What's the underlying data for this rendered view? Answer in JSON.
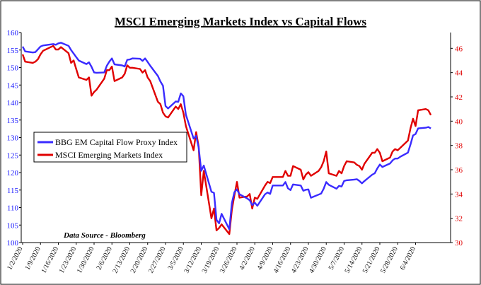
{
  "chart_data": {
    "type": "line",
    "title": "MSCI Emerging Markets Index vs Capital Flows",
    "annotation": "Data Source - Bloomberg",
    "legend_placement": "left-middle",
    "grid": false,
    "x_tick_labels": [
      "1/2/2020",
      "1/9/2020",
      "1/16/2020",
      "1/23/2020",
      "1/30/2020",
      "2/6/2020",
      "2/13/2020",
      "2/20/2020",
      "2/27/2020",
      "3/5/2020",
      "3/12/2020",
      "3/19/2020",
      "3/26/2020",
      "4/2/2020",
      "4/9/2020",
      "4/16/2020",
      "4/23/2020",
      "4/30/2020",
      "5/7/2020",
      "5/14/2020",
      "5/21/2020",
      "5/28/2020",
      "6/4/2020"
    ],
    "y_left": {
      "ticks": [
        100,
        105,
        110,
        115,
        120,
        125,
        130,
        135,
        140,
        145,
        150,
        155,
        160
      ],
      "range": [
        100,
        160
      ],
      "color": "#1a1aff"
    },
    "y_right": {
      "ticks": [
        30,
        32,
        34,
        36,
        38,
        40,
        42,
        44,
        46
      ],
      "range": [
        30,
        47.3
      ],
      "color": "#e00000"
    },
    "series": [
      {
        "name": "BBG EM Capital Flow Proxy Index",
        "axis": "left",
        "color": "#3a2bff",
        "values": [
          [
            "2020-01-02",
            156.0
          ],
          [
            "2020-01-03",
            154.6
          ],
          [
            "2020-01-06",
            154.3
          ],
          [
            "2020-01-07",
            154.4
          ],
          [
            "2020-01-08",
            155.2
          ],
          [
            "2020-01-09",
            156.0
          ],
          [
            "2020-01-10",
            156.3
          ],
          [
            "2020-01-13",
            156.6
          ],
          [
            "2020-01-14",
            156.7
          ],
          [
            "2020-01-15",
            156.5
          ],
          [
            "2020-01-16",
            156.9
          ],
          [
            "2020-01-17",
            157.1
          ],
          [
            "2020-01-20",
            156.2
          ],
          [
            "2020-01-21",
            155.0
          ],
          [
            "2020-01-22",
            154.0
          ],
          [
            "2020-01-23",
            153.0
          ],
          [
            "2020-01-24",
            152.0
          ],
          [
            "2020-01-27",
            151.0
          ],
          [
            "2020-01-28",
            151.5
          ],
          [
            "2020-01-29",
            150.2
          ],
          [
            "2020-01-30",
            148.6
          ],
          [
            "2020-01-31",
            148.5
          ],
          [
            "2020-02-03",
            148.6
          ],
          [
            "2020-02-04",
            150.5
          ],
          [
            "2020-02-05",
            151.7
          ],
          [
            "2020-02-06",
            152.6
          ],
          [
            "2020-02-07",
            150.9
          ],
          [
            "2020-02-10",
            150.6
          ],
          [
            "2020-02-11",
            150.3
          ],
          [
            "2020-02-12",
            152.2
          ],
          [
            "2020-02-13",
            152.3
          ],
          [
            "2020-02-14",
            152.6
          ],
          [
            "2020-02-17",
            152.5
          ],
          [
            "2020-02-18",
            151.9
          ],
          [
            "2020-02-19",
            152.6
          ],
          [
            "2020-02-20",
            151.6
          ],
          [
            "2020-02-21",
            150.5
          ],
          [
            "2020-02-24",
            147.6
          ],
          [
            "2020-02-25",
            146.0
          ],
          [
            "2020-02-26",
            144.8
          ],
          [
            "2020-02-27",
            139.0
          ],
          [
            "2020-02-28",
            138.3
          ],
          [
            "2020-03-02",
            140.3
          ],
          [
            "2020-03-03",
            140.2
          ],
          [
            "2020-03-04",
            142.6
          ],
          [
            "2020-03-05",
            141.8
          ],
          [
            "2020-03-06",
            136.5
          ],
          [
            "2020-03-09",
            129.7
          ],
          [
            "2020-03-10",
            130.5
          ],
          [
            "2020-03-11",
            127.1
          ],
          [
            "2020-03-12",
            120.5
          ],
          [
            "2020-03-13",
            122.0
          ],
          [
            "2020-03-16",
            114.5
          ],
          [
            "2020-03-17",
            114.2
          ],
          [
            "2020-03-18",
            106.5
          ],
          [
            "2020-03-19",
            105.5
          ],
          [
            "2020-03-20",
            108.2
          ],
          [
            "2020-03-23",
            103.8
          ],
          [
            "2020-03-24",
            111.3
          ],
          [
            "2020-03-25",
            114.4
          ],
          [
            "2020-03-26",
            115.2
          ],
          [
            "2020-03-27",
            113.8
          ],
          [
            "2020-03-30",
            112.6
          ],
          [
            "2020-03-31",
            112.1
          ],
          [
            "2020-04-01",
            110.7
          ],
          [
            "2020-04-02",
            111.4
          ],
          [
            "2020-04-03",
            110.5
          ],
          [
            "2020-04-06",
            113.8
          ],
          [
            "2020-04-07",
            114.3
          ],
          [
            "2020-04-08",
            113.9
          ],
          [
            "2020-04-09",
            116.3
          ],
          [
            "2020-04-13",
            116.3
          ],
          [
            "2020-04-14",
            117.3
          ],
          [
            "2020-04-15",
            115.5
          ],
          [
            "2020-04-16",
            115.0
          ],
          [
            "2020-04-17",
            116.6
          ],
          [
            "2020-04-20",
            116.3
          ],
          [
            "2020-04-21",
            114.8
          ],
          [
            "2020-04-22",
            115.1
          ],
          [
            "2020-04-23",
            115.2
          ],
          [
            "2020-04-24",
            112.8
          ],
          [
            "2020-04-27",
            113.7
          ],
          [
            "2020-04-28",
            114.0
          ],
          [
            "2020-04-29",
            115.4
          ],
          [
            "2020-04-30",
            117.3
          ],
          [
            "2020-05-01",
            116.5
          ],
          [
            "2020-05-04",
            115.4
          ],
          [
            "2020-05-05",
            116.2
          ],
          [
            "2020-05-06",
            116.0
          ],
          [
            "2020-05-07",
            117.6
          ],
          [
            "2020-05-08",
            117.8
          ],
          [
            "2020-05-11",
            118.0
          ],
          [
            "2020-05-12",
            118.1
          ],
          [
            "2020-05-13",
            117.6
          ],
          [
            "2020-05-14",
            116.9
          ],
          [
            "2020-05-15",
            117.6
          ],
          [
            "2020-05-18",
            119.4
          ],
          [
            "2020-05-19",
            119.8
          ],
          [
            "2020-05-20",
            121.2
          ],
          [
            "2020-05-21",
            122.3
          ],
          [
            "2020-05-22",
            121.6
          ],
          [
            "2020-05-25",
            122.6
          ],
          [
            "2020-05-26",
            123.5
          ],
          [
            "2020-05-27",
            124.0
          ],
          [
            "2020-05-28",
            124.0
          ],
          [
            "2020-05-29",
            124.5
          ],
          [
            "2020-06-01",
            125.7
          ],
          [
            "2020-06-02",
            128.0
          ],
          [
            "2020-06-03",
            130.6
          ],
          [
            "2020-06-04",
            131.0
          ],
          [
            "2020-06-05",
            132.6
          ],
          [
            "2020-06-08",
            132.8
          ],
          [
            "2020-06-09",
            133.0
          ],
          [
            "2020-06-10",
            132.6
          ]
        ]
      },
      {
        "name": "MSCI Emerging Markets Index",
        "axis": "right",
        "color": "#e00000",
        "values": [
          [
            "2020-01-02",
            45.5
          ],
          [
            "2020-01-03",
            44.9
          ],
          [
            "2020-01-06",
            44.8
          ],
          [
            "2020-01-07",
            44.9
          ],
          [
            "2020-01-08",
            45.1
          ],
          [
            "2020-01-09",
            45.5
          ],
          [
            "2020-01-10",
            45.8
          ],
          [
            "2020-01-13",
            46.1
          ],
          [
            "2020-01-14",
            46.2
          ],
          [
            "2020-01-15",
            45.9
          ],
          [
            "2020-01-16",
            45.9
          ],
          [
            "2020-01-17",
            46.1
          ],
          [
            "2020-01-20",
            45.6
          ],
          [
            "2020-01-21",
            44.8
          ],
          [
            "2020-01-22",
            45.0
          ],
          [
            "2020-01-23",
            44.3
          ],
          [
            "2020-01-24",
            43.6
          ],
          [
            "2020-01-27",
            43.4
          ],
          [
            "2020-01-28",
            43.6
          ],
          [
            "2020-01-29",
            42.1
          ],
          [
            "2020-01-30",
            42.4
          ],
          [
            "2020-01-31",
            42.6
          ],
          [
            "2020-02-03",
            43.5
          ],
          [
            "2020-02-04",
            44.2
          ],
          [
            "2020-02-05",
            44.2
          ],
          [
            "2020-02-06",
            44.5
          ],
          [
            "2020-02-07",
            43.3
          ],
          [
            "2020-02-10",
            43.6
          ],
          [
            "2020-02-11",
            43.9
          ],
          [
            "2020-02-12",
            44.6
          ],
          [
            "2020-02-13",
            44.4
          ],
          [
            "2020-02-14",
            44.4
          ],
          [
            "2020-02-17",
            44.3
          ],
          [
            "2020-02-18",
            44.0
          ],
          [
            "2020-02-19",
            44.2
          ],
          [
            "2020-02-20",
            43.6
          ],
          [
            "2020-02-21",
            43.3
          ],
          [
            "2020-02-24",
            41.6
          ],
          [
            "2020-02-25",
            41.4
          ],
          [
            "2020-02-26",
            40.7
          ],
          [
            "2020-02-27",
            40.4
          ],
          [
            "2020-02-28",
            40.3
          ],
          [
            "2020-03-02",
            41.2
          ],
          [
            "2020-03-03",
            41.0
          ],
          [
            "2020-03-04",
            41.4
          ],
          [
            "2020-03-05",
            40.7
          ],
          [
            "2020-03-06",
            39.6
          ],
          [
            "2020-03-09",
            37.6
          ],
          [
            "2020-03-10",
            39.1
          ],
          [
            "2020-03-11",
            37.9
          ],
          [
            "2020-03-12",
            33.9
          ],
          [
            "2020-03-13",
            35.9
          ],
          [
            "2020-03-16",
            32.0
          ],
          [
            "2020-03-17",
            32.8
          ],
          [
            "2020-03-18",
            31.0
          ],
          [
            "2020-03-19",
            31.2
          ],
          [
            "2020-03-20",
            31.5
          ],
          [
            "2020-03-23",
            30.7
          ],
          [
            "2020-03-24",
            32.7
          ],
          [
            "2020-03-25",
            33.9
          ],
          [
            "2020-03-26",
            35.0
          ],
          [
            "2020-03-27",
            33.7
          ],
          [
            "2020-03-30",
            33.8
          ],
          [
            "2020-03-31",
            34.0
          ],
          [
            "2020-04-01",
            32.8
          ],
          [
            "2020-04-02",
            33.7
          ],
          [
            "2020-04-03",
            33.6
          ],
          [
            "2020-04-06",
            34.7
          ],
          [
            "2020-04-07",
            35.0
          ],
          [
            "2020-04-08",
            34.9
          ],
          [
            "2020-04-09",
            35.4
          ],
          [
            "2020-04-13",
            35.4
          ],
          [
            "2020-04-14",
            35.9
          ],
          [
            "2020-04-15",
            35.5
          ],
          [
            "2020-04-16",
            35.5
          ],
          [
            "2020-04-17",
            36.3
          ],
          [
            "2020-04-20",
            36.0
          ],
          [
            "2020-04-21",
            35.2
          ],
          [
            "2020-04-22",
            35.6
          ],
          [
            "2020-04-23",
            35.8
          ],
          [
            "2020-04-24",
            35.5
          ],
          [
            "2020-04-27",
            35.9
          ],
          [
            "2020-04-28",
            36.2
          ],
          [
            "2020-04-29",
            36.7
          ],
          [
            "2020-04-30",
            37.5
          ],
          [
            "2020-05-01",
            35.7
          ],
          [
            "2020-05-04",
            35.5
          ],
          [
            "2020-05-05",
            35.9
          ],
          [
            "2020-05-06",
            35.7
          ],
          [
            "2020-05-07",
            36.3
          ],
          [
            "2020-05-08",
            36.7
          ],
          [
            "2020-05-11",
            36.6
          ],
          [
            "2020-05-12",
            36.4
          ],
          [
            "2020-05-13",
            36.3
          ],
          [
            "2020-05-14",
            36.0
          ],
          [
            "2020-05-15",
            36.5
          ],
          [
            "2020-05-18",
            37.4
          ],
          [
            "2020-05-19",
            37.4
          ],
          [
            "2020-05-20",
            37.7
          ],
          [
            "2020-05-21",
            37.4
          ],
          [
            "2020-05-22",
            36.7
          ],
          [
            "2020-05-25",
            37.0
          ],
          [
            "2020-05-26",
            37.5
          ],
          [
            "2020-05-27",
            37.7
          ],
          [
            "2020-05-28",
            37.6
          ],
          [
            "2020-05-29",
            37.8
          ],
          [
            "2020-06-01",
            38.4
          ],
          [
            "2020-06-02",
            39.4
          ],
          [
            "2020-06-03",
            40.2
          ],
          [
            "2020-06-04",
            39.6
          ],
          [
            "2020-06-05",
            40.9
          ],
          [
            "2020-06-08",
            41.0
          ],
          [
            "2020-06-09",
            40.9
          ],
          [
            "2020-06-10",
            40.5
          ]
        ]
      }
    ]
  }
}
